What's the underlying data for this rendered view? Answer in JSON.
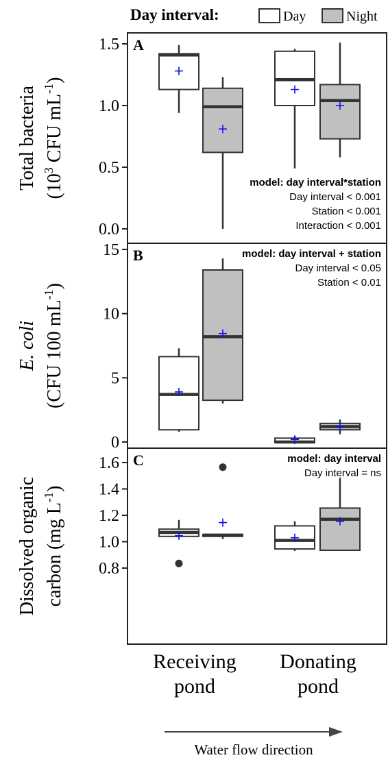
{
  "legend": {
    "title": "Day interval:",
    "items": [
      {
        "label": "Day",
        "color": "#ffffff"
      },
      {
        "label": "Night",
        "color": "#c0c0c0"
      }
    ]
  },
  "x_categories": [
    {
      "line1": "Receiving",
      "line2": "pond"
    },
    {
      "line1": "Donating",
      "line2": "pond"
    }
  ],
  "flow_label": "Water flow direction",
  "chart_data": [
    {
      "type": "box",
      "panel": "A",
      "ylabel_line1": "Total bacteria",
      "ylabel_line2_prefix": "(10",
      "ylabel_line2_sup": "3",
      "ylabel_line2_mid": " CFU mL",
      "ylabel_line2_sup2": "-1",
      "ylabel_line2_end": ")",
      "ylim": [
        0,
        1.5
      ],
      "ticks": [
        0,
        0.5,
        1.0,
        1.5
      ],
      "tick_labels": [
        "0.0",
        "0.5",
        "1.0",
        "1.5"
      ],
      "stats": [
        "model: day interval*station",
        "Day interval < 0.001",
        "Station < 0.001",
        "Interaction < 0.001"
      ],
      "stats_position": "bottom-right",
      "boxes": [
        {
          "category": "Receiving pond",
          "group": "Day",
          "min": 0.94,
          "q1": 1.13,
          "median": 1.41,
          "q3": 1.42,
          "max": 1.49,
          "mean": 1.28,
          "outliers": []
        },
        {
          "category": "Receiving pond",
          "group": "Night",
          "min": 0.0,
          "q1": 0.62,
          "median": 0.99,
          "q3": 1.14,
          "max": 1.23,
          "mean": 0.81,
          "outliers": []
        },
        {
          "category": "Donating pond",
          "group": "Day",
          "min": 0.49,
          "q1": 1.0,
          "median": 1.21,
          "q3": 1.44,
          "max": 1.46,
          "mean": 1.13,
          "outliers": []
        },
        {
          "category": "Donating pond",
          "group": "Night",
          "min": 0.58,
          "q1": 0.73,
          "median": 1.04,
          "q3": 1.17,
          "max": 1.51,
          "mean": 1.0,
          "outliers": []
        }
      ]
    },
    {
      "type": "box",
      "panel": "B",
      "ylabel_line1": "E. coli",
      "ylabel_line2_prefix": "(CFU 100 mL",
      "ylabel_line2_sup": "-1",
      "ylabel_line2_mid": "",
      "ylabel_line2_sup2": "",
      "ylabel_line2_end": ")",
      "ylim": [
        0,
        15
      ],
      "ticks": [
        0,
        5,
        10,
        15
      ],
      "tick_labels": [
        "0",
        "5",
        "10",
        "15"
      ],
      "stats": [
        "model: day interval + station",
        "Day interval < 0.05",
        "Station < 0.01"
      ],
      "stats_position": "top-right",
      "boxes": [
        {
          "category": "Receiving pond",
          "group": "Day",
          "min": 0.8,
          "q1": 0.95,
          "median": 3.7,
          "q3": 6.65,
          "max": 7.3,
          "mean": 3.9,
          "outliers": []
        },
        {
          "category": "Receiving pond",
          "group": "Night",
          "min": 3.0,
          "q1": 3.25,
          "median": 8.2,
          "q3": 13.4,
          "max": 14.3,
          "mean": 8.45,
          "outliers": []
        },
        {
          "category": "Donating pond",
          "group": "Day",
          "min": -0.15,
          "q1": -0.05,
          "median": 0.0,
          "q3": 0.3,
          "max": 0.45,
          "mean": 0.2,
          "outliers": []
        },
        {
          "category": "Donating pond",
          "group": "Night",
          "min": 0.6,
          "q1": 0.95,
          "median": 1.2,
          "q3": 1.45,
          "max": 1.75,
          "mean": 1.2,
          "outliers": []
        }
      ]
    },
    {
      "type": "box",
      "panel": "C",
      "ylabel_line1": "Dissolved organic",
      "ylabel_line2_prefix": "carbon (mg L",
      "ylabel_line2_sup": "-1",
      "ylabel_line2_mid": "",
      "ylabel_line2_sup2": "",
      "ylabel_line2_end": ")",
      "ylim": [
        0.8,
        1.6
      ],
      "ticks": [
        0.8,
        1.0,
        1.2,
        1.4,
        1.6
      ],
      "tick_labels": [
        "0.8",
        "1.0",
        "1.2",
        "1.4",
        "1.6"
      ],
      "stats": [
        "model: day interval",
        "Day interval = ns"
      ],
      "stats_position": "top-right",
      "boxes": [
        {
          "category": "Receiving pond",
          "group": "Day",
          "min": 1.04,
          "q1": 1.04,
          "median": 1.07,
          "q3": 1.095,
          "max": 1.165,
          "mean": 1.045,
          "outliers": [
            0.835
          ]
        },
        {
          "category": "Receiving pond",
          "group": "Night",
          "min": 1.02,
          "q1": 1.04,
          "median": 1.05,
          "q3": 1.055,
          "max": 1.06,
          "mean": 1.145,
          "outliers": [
            1.565
          ]
        },
        {
          "category": "Donating pond",
          "group": "Day",
          "min": 0.93,
          "q1": 0.945,
          "median": 1.01,
          "q3": 1.12,
          "max": 1.155,
          "mean": 1.03,
          "outliers": []
        },
        {
          "category": "Donating pond",
          "group": "Night",
          "min": 0.935,
          "q1": 0.935,
          "median": 1.17,
          "q3": 1.255,
          "max": 1.485,
          "mean": 1.155,
          "outliers": []
        }
      ]
    }
  ]
}
